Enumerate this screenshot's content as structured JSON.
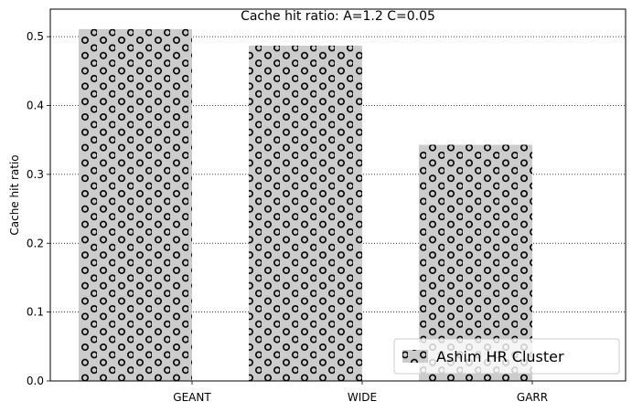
{
  "chart_data": {
    "type": "bar",
    "title": "Cache hit ratio: A=1.2 C=0.05",
    "xlabel": "",
    "ylabel": "Cache hit ratio",
    "categories": [
      "GEANT",
      "WIDE",
      "GARR"
    ],
    "series": [
      {
        "name": "Ashim HR Cluster",
        "values": [
          0.511,
          0.487,
          0.343
        ]
      }
    ],
    "ylim": [
      0,
      0.54
    ],
    "yticks": [
      0.0,
      0.1,
      0.2,
      0.3,
      0.4,
      0.5
    ],
    "ytick_labels": [
      "0.0",
      "0.1",
      "0.2",
      "0.3",
      "0.4",
      "0.5"
    ],
    "grid": "y-dotted",
    "legend_position": "lower-right",
    "bar_color": "#cccccc",
    "hatch": "circles"
  }
}
